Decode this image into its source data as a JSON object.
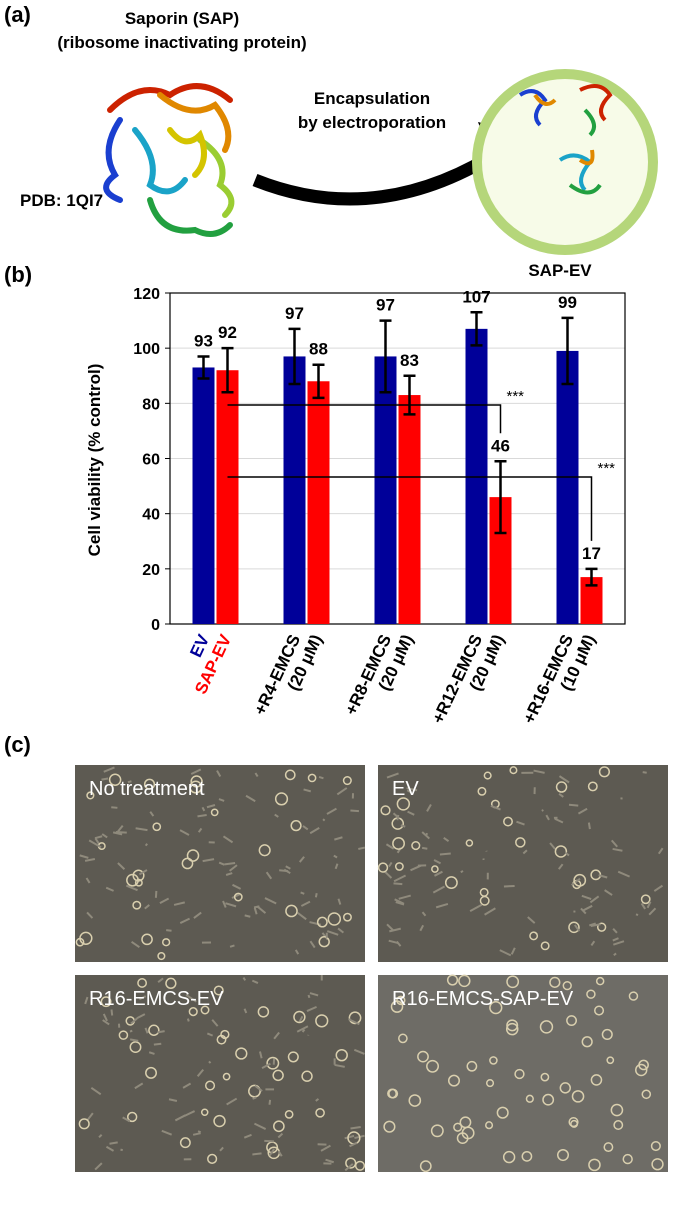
{
  "figure": {
    "panel_a": {
      "label": "(a)",
      "title_lines": [
        "Saporin (SAP)",
        "(ribosome inactivating protein)"
      ],
      "pdb": "PDB: 1QI7",
      "arrow_lines": [
        "Encapsulation",
        "by electroporation"
      ],
      "vesicle_label": "SAP-EV"
    },
    "panel_b": {
      "label": "(b)"
    },
    "panel_c": {
      "label": "(c)",
      "images": [
        "No treatment",
        "EV",
        "R16-EMCS-EV",
        "R16-EMCS-SAP-EV"
      ]
    }
  },
  "chart_data": {
    "type": "bar",
    "y_label": "Cell viability (% control)",
    "categories": [
      null,
      [
        "+R4-EMCS",
        "(20 μM)"
      ],
      [
        "+R8-EMCS",
        "(20 μM)"
      ],
      [
        "+R12-EMCS",
        "(20 μM)"
      ],
      [
        "+R16-EMCS",
        "(10 μM)"
      ]
    ],
    "series": [
      {
        "name": "EV",
        "color": "#000099",
        "values": [
          93,
          97,
          97,
          107,
          99
        ],
        "errors": [
          4,
          10,
          13,
          6,
          12
        ]
      },
      {
        "name": "SAP-EV",
        "color": "#ff0000",
        "values": [
          92,
          88,
          83,
          46,
          17
        ],
        "errors": [
          8,
          6,
          7,
          13,
          3
        ]
      }
    ],
    "ylim": [
      0,
      120
    ],
    "yticks": [
      0,
      20,
      40,
      60,
      80,
      100,
      120
    ],
    "grid": true,
    "annotations": [
      "***",
      "***"
    ]
  }
}
